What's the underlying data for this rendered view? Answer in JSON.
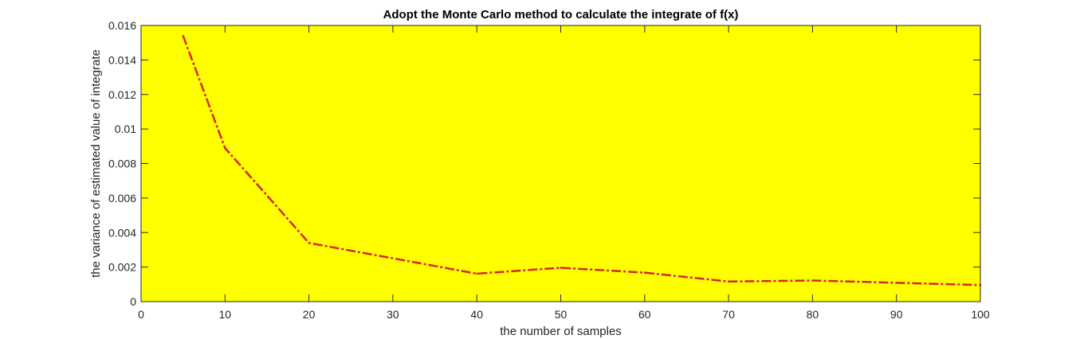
{
  "chart_data": {
    "type": "line",
    "title": "Adopt the Monte Carlo method to calculate the integrate of f(x)",
    "xlabel": "the number of samples",
    "ylabel": "the variance of estimated value of integrate",
    "xlim": [
      0,
      100
    ],
    "ylim": [
      0,
      0.016
    ],
    "x_ticks": [
      0,
      10,
      20,
      30,
      40,
      50,
      60,
      70,
      80,
      90,
      100
    ],
    "y_ticks": [
      0,
      0.002,
      0.004,
      0.006,
      0.008,
      0.01,
      0.012,
      0.014,
      0.016
    ],
    "x_tick_labels": [
      "0",
      "10",
      "20",
      "30",
      "40",
      "50",
      "60",
      "70",
      "80",
      "90",
      "100"
    ],
    "y_tick_labels": [
      "0",
      "0.002",
      "0.004",
      "0.006",
      "0.008",
      "0.01",
      "0.012",
      "0.014",
      "0.016"
    ],
    "grid": false,
    "series": [
      {
        "x": [
          5,
          10,
          20,
          40,
          50,
          60,
          70,
          80,
          100
        ],
        "y": [
          0.0154,
          0.0089,
          0.0034,
          0.00162,
          0.00196,
          0.00168,
          0.00116,
          0.00122,
          0.00096
        ],
        "color": "#d62728",
        "line_style": "dash-dot"
      }
    ],
    "plot_background": "#ffff00"
  }
}
